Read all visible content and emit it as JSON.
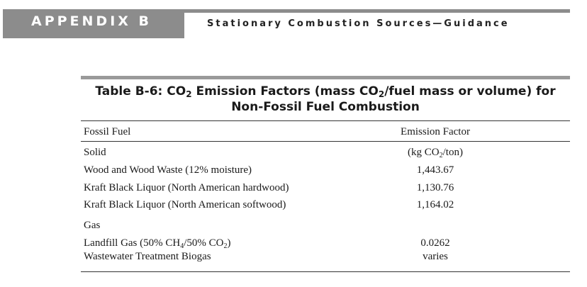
{
  "header": {
    "tab_label": "APPENDIX B",
    "subtitle": "Stationary Combustion Sources—Guidance"
  },
  "table": {
    "title_prefix": "Table B-6: CO",
    "title_sub1": "2",
    "title_mid": " Emission Factors (mass CO",
    "title_sub2": "2",
    "title_suffix": "/fuel mass or volume) for Non-Fossil Fuel Combustion",
    "col_fuel": "Fossil Fuel",
    "col_factor": "Emission Factor",
    "solid_heading": "Solid",
    "solid_unit_a": "(kg CO",
    "solid_unit_sub": "2",
    "solid_unit_b": "/ton)",
    "rows_solid": [
      {
        "fuel": "Wood and Wood Waste (12% moisture)",
        "factor": "1,443.67"
      },
      {
        "fuel": "Kraft Black Liquor (North American hardwood)",
        "factor": "1,130.76"
      },
      {
        "fuel": "Kraft Black Liquor (North American softwood)",
        "factor": "1,164.02"
      }
    ],
    "gas_heading": "Gas",
    "landfill_a": "Landfill Gas (50% CH",
    "landfill_sub1": "4",
    "landfill_b": "/50% CO",
    "landfill_sub2": "2",
    "landfill_c": ")",
    "landfill_factor": "0.0262",
    "wastewater_fuel": "Wastewater Treatment Biogas",
    "wastewater_factor": "varies"
  }
}
